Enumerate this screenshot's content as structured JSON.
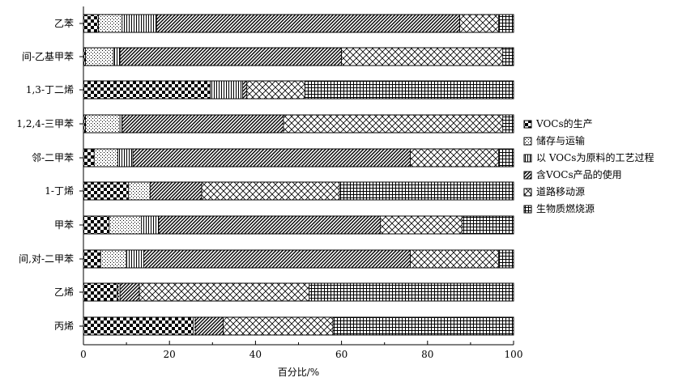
{
  "chart_data": {
    "type": "bar",
    "orientation": "horizontal",
    "stacked": true,
    "title": "",
    "xlabel": "百分比/%",
    "ylabel": "",
    "xlim": [
      0,
      100
    ],
    "x_ticks": [
      "0",
      "20",
      "40",
      "60",
      "80",
      "100"
    ],
    "grid": false,
    "legend_position": "right",
    "categories": [
      "乙苯",
      "间-乙基甲苯",
      "1,3-丁二烯",
      "1,2,4-三甲苯",
      "邻-二甲苯",
      "1-丁烯",
      "甲苯",
      "间,对-二甲苯",
      "乙烯",
      "丙烯"
    ],
    "series": [
      {
        "name": "VOCs的生产",
        "pattern": "checker-coarse",
        "values": [
          3.5,
          0.5,
          29.5,
          0.5,
          2.5,
          10.5,
          6,
          4,
          8,
          25.5
        ]
      },
      {
        "name": "储存与运输",
        "pattern": "dots",
        "values": [
          5.5,
          6.5,
          0,
          8,
          5.5,
          5,
          7.5,
          6,
          0.5,
          0.5
        ]
      },
      {
        "name": "以 VOCs为原料的工艺过程",
        "pattern": "vertical-lines",
        "values": [
          8,
          1.5,
          7.5,
          0.5,
          3.5,
          0,
          4,
          4,
          0,
          0
        ]
      },
      {
        "name": "含VOCs产品的使用",
        "pattern": "diagonal-dense",
        "values": [
          70.5,
          51.5,
          1,
          37.5,
          64.5,
          12,
          51.5,
          62,
          4.5,
          6.5
        ]
      },
      {
        "name": "道路移动源",
        "pattern": "diamond",
        "values": [
          9,
          37.5,
          13.5,
          51,
          20.5,
          32,
          19,
          20.5,
          39.5,
          25.5
        ]
      },
      {
        "name": "生物质燃烧源",
        "pattern": "grid",
        "values": [
          3.5,
          2.5,
          48.5,
          2.5,
          3.5,
          40.5,
          12,
          3.5,
          47.5,
          42
        ]
      }
    ]
  }
}
